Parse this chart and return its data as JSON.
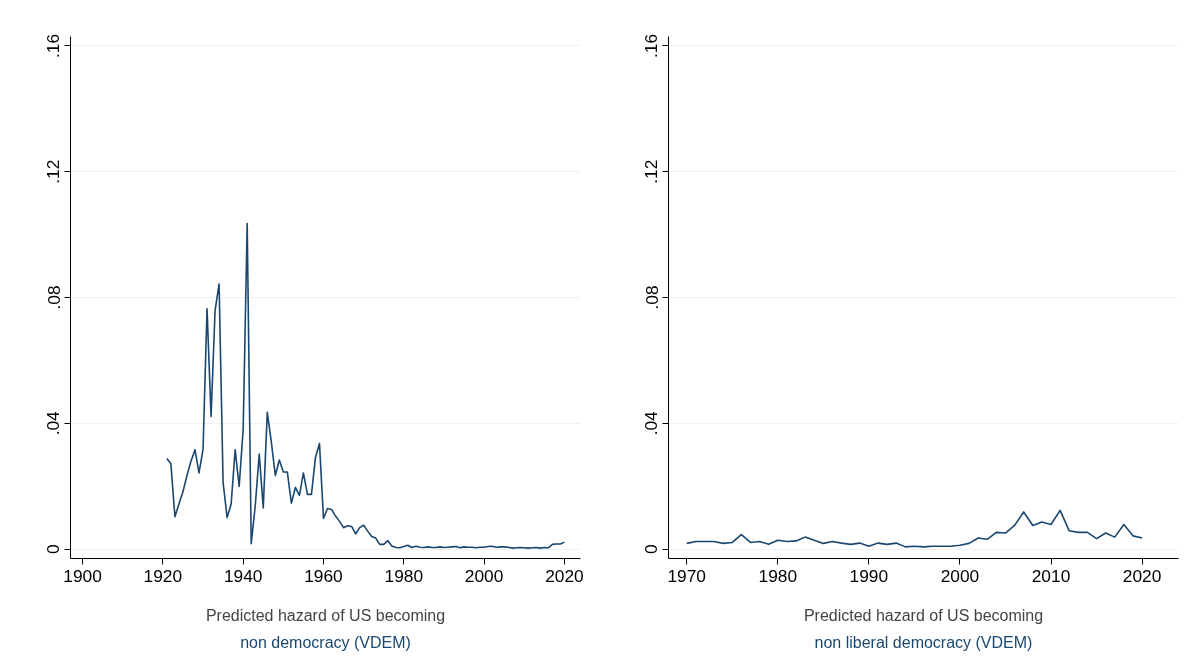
{
  "chart_data": [
    {
      "type": "line",
      "color": "#1a476f",
      "xlabel": "Predicted hazard of US becoming",
      "subtitle": "non democracy (VDEM)",
      "grid": "y",
      "xlim": [
        1897,
        2024
      ],
      "ylim": [
        -0.003,
        0.163
      ],
      "xticks": [
        1900,
        1920,
        1940,
        1960,
        1980,
        2000,
        2020
      ],
      "yticks": [
        0,
        {
          "value": 0.04,
          "label": ".04"
        },
        {
          "value": 0.08,
          "label": ".08"
        },
        {
          "value": 0.12,
          "label": ".12"
        },
        {
          "value": 0.16,
          "label": ".16"
        }
      ],
      "x": [
        1921,
        1922,
        1923,
        1924,
        1925,
        1926,
        1927,
        1928,
        1929,
        1930,
        1931,
        1932,
        1933,
        1934,
        1935,
        1936,
        1937,
        1938,
        1939,
        1940,
        1941,
        1942,
        1943,
        1944,
        1945,
        1946,
        1947,
        1948,
        1949,
        1950,
        1951,
        1952,
        1953,
        1954,
        1955,
        1956,
        1957,
        1958,
        1959,
        1960,
        1961,
        1962,
        1963,
        1964,
        1965,
        1966,
        1967,
        1968,
        1969,
        1970,
        1971,
        1972,
        1973,
        1974,
        1975,
        1976,
        1977,
        1978,
        1979,
        1980,
        1981,
        1982,
        1983,
        1984,
        1985,
        1986,
        1987,
        1988,
        1989,
        1990,
        1991,
        1992,
        1993,
        1994,
        1995,
        1996,
        1997,
        1998,
        1999,
        2000,
        2001,
        2002,
        2003,
        2004,
        2005,
        2006,
        2007,
        2008,
        2009,
        2010,
        2011,
        2012,
        2013,
        2014,
        2015,
        2016,
        2017,
        2018,
        2019,
        2020
      ],
      "values": [
        0.0288,
        0.0271,
        0.0103,
        0.0143,
        0.0182,
        0.0234,
        0.0279,
        0.0316,
        0.0242,
        0.0316,
        0.0764,
        0.0422,
        0.0758,
        0.0843,
        0.0211,
        0.01,
        0.0143,
        0.0316,
        0.0199,
        0.0382,
        0.1035,
        0.0017,
        0.0137,
        0.0302,
        0.0131,
        0.0435,
        0.0342,
        0.0234,
        0.0283,
        0.0245,
        0.0245,
        0.0146,
        0.0196,
        0.0171,
        0.0242,
        0.0174,
        0.0174,
        0.0291,
        0.0336,
        0.0097,
        0.0129,
        0.0126,
        0.0105,
        0.0088,
        0.0068,
        0.0074,
        0.0072,
        0.0048,
        0.0068,
        0.0076,
        0.0057,
        0.004,
        0.0035,
        0.0015,
        0.0015,
        0.0027,
        0.001,
        0.0005,
        0.0004,
        0.0008,
        0.0012,
        0.0005,
        0.0009,
        0.0006,
        0.0005,
        0.0007,
        0.0005,
        0.0005,
        0.0007,
        0.0005,
        0.0006,
        0.0007,
        0.0008,
        0.0004,
        0.0007,
        0.0006,
        0.0006,
        0.0004,
        0.0006,
        0.0006,
        0.0008,
        0.0009,
        0.0006,
        0.0007,
        0.0007,
        0.0006,
        0.0003,
        0.0004,
        0.0005,
        0.0004,
        0.0003,
        0.0004,
        0.0005,
        0.0003,
        0.0005,
        0.0004,
        0.0015,
        0.0016,
        0.0016,
        0.0022
      ]
    },
    {
      "type": "line",
      "color": "#1a476f",
      "xlabel": "Predicted hazard of US becoming",
      "subtitle": "non liberal democracy (VDEM)",
      "grid": "y",
      "xlim": [
        1968,
        2024
      ],
      "ylim": [
        -0.003,
        0.163
      ],
      "xticks": [
        1970,
        1980,
        1990,
        2000,
        2010,
        2020
      ],
      "yticks": [
        0,
        {
          "value": 0.04,
          "label": ".04"
        },
        {
          "value": 0.08,
          "label": ".08"
        },
        {
          "value": 0.12,
          "label": ".12"
        },
        {
          "value": 0.16,
          "label": ".16"
        }
      ],
      "x": [
        1970,
        1971,
        1972,
        1973,
        1974,
        1975,
        1976,
        1977,
        1978,
        1979,
        1980,
        1981,
        1982,
        1983,
        1984,
        1985,
        1986,
        1987,
        1988,
        1989,
        1990,
        1991,
        1992,
        1993,
        1994,
        1995,
        1996,
        1997,
        1998,
        1999,
        2000,
        2001,
        2002,
        2003,
        2004,
        2005,
        2006,
        2007,
        2008,
        2009,
        2010,
        2011,
        2012,
        2013,
        2014,
        2015,
        2016,
        2017,
        2018,
        2019,
        2020
      ],
      "values": [
        0.0018,
        0.0024,
        0.0024,
        0.0024,
        0.0018,
        0.0021,
        0.0046,
        0.0021,
        0.0024,
        0.0015,
        0.0028,
        0.0024,
        0.0026,
        0.0038,
        0.0028,
        0.0018,
        0.0024,
        0.0019,
        0.0015,
        0.0019,
        0.0009,
        0.0019,
        0.0015,
        0.0019,
        0.0007,
        0.0009,
        0.0007,
        0.0009,
        0.0009,
        0.0009,
        0.0012,
        0.0018,
        0.0035,
        0.0031,
        0.0053,
        0.0051,
        0.0075,
        0.0118,
        0.0075,
        0.0086,
        0.0078,
        0.0123,
        0.0058,
        0.0053,
        0.0053,
        0.0033,
        0.0051,
        0.0038,
        0.0078,
        0.0042,
        0.0035
      ]
    }
  ]
}
